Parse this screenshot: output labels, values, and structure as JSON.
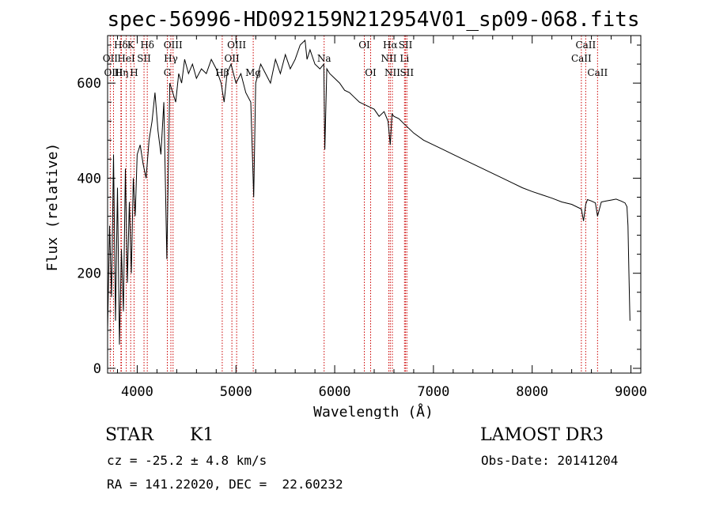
{
  "chart_data": {
    "type": "line",
    "title": "spec-56996-HD092159N212954V01_sp09-068.fits",
    "xlabel": "Wavelength (Å)",
    "ylabel": "Flux (relative)",
    "xlim": [
      3700,
      9100
    ],
    "ylim": [
      -10,
      700
    ],
    "x_ticks": [
      4000,
      5000,
      6000,
      7000,
      8000,
      9000
    ],
    "y_ticks": [
      0,
      200,
      400,
      600
    ],
    "series": [
      {
        "name": "spectrum",
        "x": [
          3700,
          3720,
          3740,
          3760,
          3780,
          3800,
          3820,
          3840,
          3860,
          3880,
          3900,
          3920,
          3940,
          3960,
          3980,
          4000,
          4030,
          4060,
          4090,
          4120,
          4150,
          4180,
          4210,
          4240,
          4270,
          4300,
          4330,
          4360,
          4390,
          4420,
          4450,
          4480,
          4520,
          4560,
          4600,
          4650,
          4700,
          4750,
          4800,
          4850,
          4880,
          4910,
          4950,
          5000,
          5050,
          5100,
          5150,
          5180,
          5200,
          5250,
          5300,
          5350,
          5400,
          5450,
          5500,
          5550,
          5600,
          5650,
          5700,
          5720,
          5750,
          5800,
          5850,
          5890,
          5900,
          5920,
          5950,
          6000,
          6050,
          6100,
          6150,
          6200,
          6250,
          6300,
          6350,
          6400,
          6450,
          6500,
          6540,
          6563,
          6580,
          6600,
          6650,
          6700,
          6750,
          6800,
          6900,
          7000,
          7100,
          7200,
          7300,
          7400,
          7500,
          7600,
          7700,
          7800,
          7900,
          8000,
          8100,
          8200,
          8300,
          8400,
          8498,
          8520,
          8542,
          8560,
          8600,
          8640,
          8662,
          8700,
          8750,
          8800,
          8850,
          8900,
          8940,
          8960,
          8970,
          8980,
          8990
        ],
        "values": [
          80,
          300,
          150,
          450,
          100,
          380,
          50,
          250,
          120,
          420,
          180,
          350,
          200,
          400,
          320,
          450,
          470,
          430,
          400,
          480,
          520,
          580,
          500,
          450,
          560,
          230,
          600,
          580,
          560,
          620,
          600,
          650,
          620,
          640,
          610,
          630,
          620,
          650,
          630,
          600,
          560,
          620,
          640,
          600,
          620,
          580,
          560,
          360,
          600,
          640,
          620,
          600,
          650,
          620,
          660,
          630,
          650,
          680,
          690,
          650,
          670,
          640,
          630,
          640,
          460,
          630,
          620,
          610,
          600,
          585,
          580,
          570,
          560,
          555,
          550,
          545,
          530,
          540,
          520,
          470,
          535,
          530,
          525,
          515,
          505,
          495,
          480,
          470,
          460,
          450,
          440,
          430,
          420,
          410,
          400,
          390,
          380,
          372,
          365,
          358,
          350,
          345,
          335,
          310,
          345,
          355,
          352,
          348,
          320,
          350,
          352,
          354,
          356,
          352,
          348,
          340,
          300,
          200,
          100
        ]
      }
    ],
    "line_markers": [
      {
        "label": "Hδ",
        "x": 3835,
        "row": 1
      },
      {
        "label": "OII",
        "x": 3727,
        "row": 2
      },
      {
        "label": "OIII",
        "x": 3760,
        "row": 3
      },
      {
        "label": "K",
        "x": 3934,
        "row": 1
      },
      {
        "label": "HeI",
        "x": 3889,
        "row": 2
      },
      {
        "label": "Hη",
        "x": 3840,
        "row": 3
      },
      {
        "label": "Hδ",
        "x": 4102,
        "row": 1
      },
      {
        "label": "SII",
        "x": 4069,
        "row": 2
      },
      {
        "label": "H",
        "x": 3968,
        "row": 3
      },
      {
        "label": "OIII",
        "x": 4363,
        "row": 1
      },
      {
        "label": "Hγ",
        "x": 4341,
        "row": 2
      },
      {
        "label": "G",
        "x": 4305,
        "row": 3
      },
      {
        "label": "OIII",
        "x": 5007,
        "row": 1
      },
      {
        "label": "OII",
        "x": 4959,
        "row": 2
      },
      {
        "label": "Hβ",
        "x": 4861,
        "row": 3
      },
      {
        "label": "Mg",
        "x": 5175,
        "row": 3
      },
      {
        "label": "Na",
        "x": 5893,
        "row": 2
      },
      {
        "label": "OI",
        "x": 6300,
        "row": 1
      },
      {
        "label": "OI",
        "x": 6364,
        "row": 3
      },
      {
        "label": "Hα",
        "x": 6563,
        "row": 1
      },
      {
        "label": "NII",
        "x": 6548,
        "row": 2
      },
      {
        "label": "NII",
        "x": 6584,
        "row": 3
      },
      {
        "label": "SII",
        "x": 6717,
        "row": 1
      },
      {
        "label": "Li",
        "x": 6707,
        "row": 2
      },
      {
        "label": "SII",
        "x": 6731,
        "row": 3
      },
      {
        "label": "CaII",
        "x": 8542,
        "row": 1
      },
      {
        "label": "CaII",
        "x": 8498,
        "row": 2
      },
      {
        "label": "CaII",
        "x": 8662,
        "row": 3
      }
    ]
  },
  "info": {
    "class": "STAR",
    "subclass": "K1",
    "survey": "LAMOST DR3",
    "cz": "cz = -25.2 ± 4.8 km/s",
    "obs_date": "Obs-Date: 20141204",
    "coords": "RA = 141.22020, DEC =  22.60232"
  },
  "colors": {
    "line_marker": "#cc0000",
    "spectrum": "#000000"
  }
}
